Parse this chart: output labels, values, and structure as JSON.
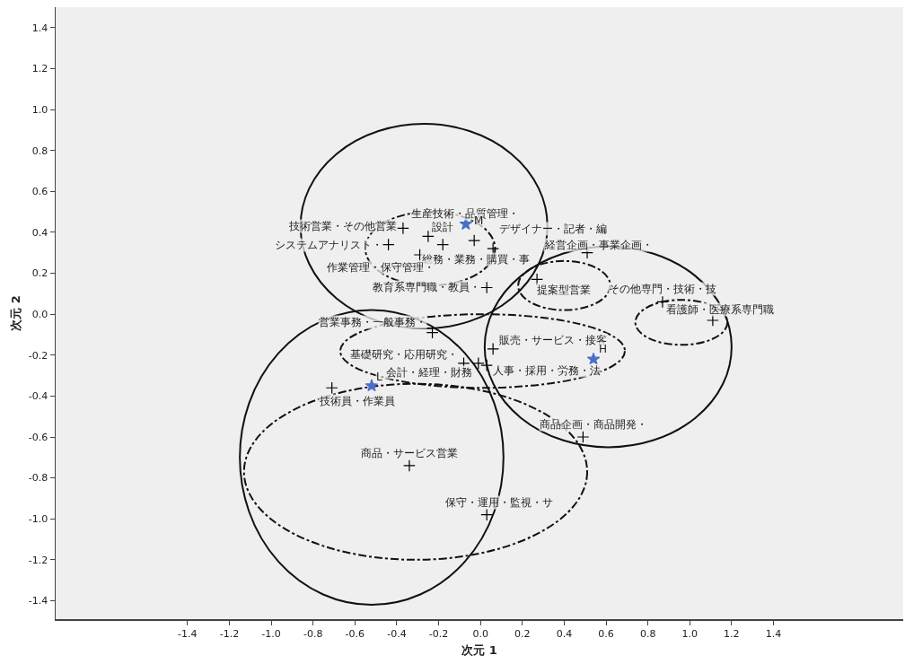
{
  "chart_data": {
    "type": "scatter",
    "xlabel": "次元 1",
    "ylabel": "次元 2",
    "xlim": [
      -2.03,
      2.02
    ],
    "xticks": [
      {
        "value": -1.4,
        "label": "-1.4"
      },
      {
        "value": -1.2,
        "label": "-1.2"
      },
      {
        "value": -1,
        "label": "-1.0"
      },
      {
        "value": -0.8,
        "label": "-0.8"
      },
      {
        "value": -0.6,
        "label": "-0.6"
      },
      {
        "value": -0.4,
        "label": "-0.4"
      },
      {
        "value": -0.2,
        "label": "-0.2"
      },
      {
        "value": 0,
        "label": "0.0"
      },
      {
        "value": 0.2,
        "label": "0.2"
      },
      {
        "value": 0.4,
        "label": "0.4"
      },
      {
        "value": 0.6,
        "label": "0.6"
      },
      {
        "value": 0.8,
        "label": "0.8"
      },
      {
        "value": 1,
        "label": "1.0"
      },
      {
        "value": 1.2,
        "label": "1.2"
      },
      {
        "value": 1.4,
        "label": "1.4"
      }
    ],
    "ylim": [
      -1.49,
      1.5
    ],
    "yticks": [
      {
        "value": -1.4,
        "label": "-1.4"
      },
      {
        "value": -1.2,
        "label": "-1.2"
      },
      {
        "value": -1,
        "label": "-1.0"
      },
      {
        "value": -0.8,
        "label": "-0.8"
      },
      {
        "value": -0.6,
        "label": "-0.6"
      },
      {
        "value": -0.4,
        "label": "-0.4"
      },
      {
        "value": -0.2,
        "label": "-0.2"
      },
      {
        "value": 0,
        "label": "0.0"
      },
      {
        "value": 0.2,
        "label": "0.2"
      },
      {
        "value": 0.4,
        "label": "0.4"
      },
      {
        "value": 0.6,
        "label": "0.6"
      },
      {
        "value": 0.8,
        "label": "0.8"
      },
      {
        "value": 1,
        "label": "1.0"
      },
      {
        "value": 1.2,
        "label": "1.2"
      },
      {
        "value": 1.4,
        "label": "1.4"
      }
    ],
    "series": [
      {
        "type": "scatter",
        "marker": "cross",
        "color": "#000000",
        "x": [
          -0.03,
          -0.37,
          -0.25,
          0.06,
          -0.44,
          -0.18,
          -0.29,
          0.03,
          -0.23,
          0.51,
          0.27,
          0.87,
          1.11,
          -0.08,
          0.06,
          -0.01,
          0.03,
          -0.71,
          -0.34,
          0.03,
          0.49
        ],
        "values": [
          0.36,
          0.42,
          0.38,
          0.32,
          0.34,
          0.34,
          0.29,
          0.13,
          -0.09,
          0.3,
          0.17,
          0.06,
          -0.03,
          -0.24,
          -0.17,
          -0.24,
          -0.25,
          -0.36,
          -0.74,
          -0.98,
          -0.6
        ],
        "value_labels": [
          "生産技術・品質管理・",
          "技術営業・その他営業",
          "設計",
          "デザイナー・記者・編",
          "システムアナリスト・",
          "総務・業務・購買・事",
          "作業管理・保守管理・",
          "教育系専門職・教員・",
          "営業事務・一般事務・",
          "経営企画・事業企画・",
          "提案型営業",
          "その他専門・技術・技",
          "看護師・医療系専門職",
          "基礎研究・応用研究・",
          "販売・サービス・接客",
          "会計・経理・財務",
          "人事・採用・労務・法",
          "技術員・作業員",
          "商品・サービス営業",
          "保守・運用・監視・サ",
          "商品企画・商品開発・"
        ]
      },
      {
        "type": "scatter",
        "marker": "star",
        "color": "#4a6fc8",
        "x": [
          -0.07,
          0.54,
          -0.52
        ],
        "values": [
          0.44,
          -0.22,
          -0.35
        ],
        "value_labels": [
          "M",
          "H",
          "L"
        ]
      }
    ]
  }
}
